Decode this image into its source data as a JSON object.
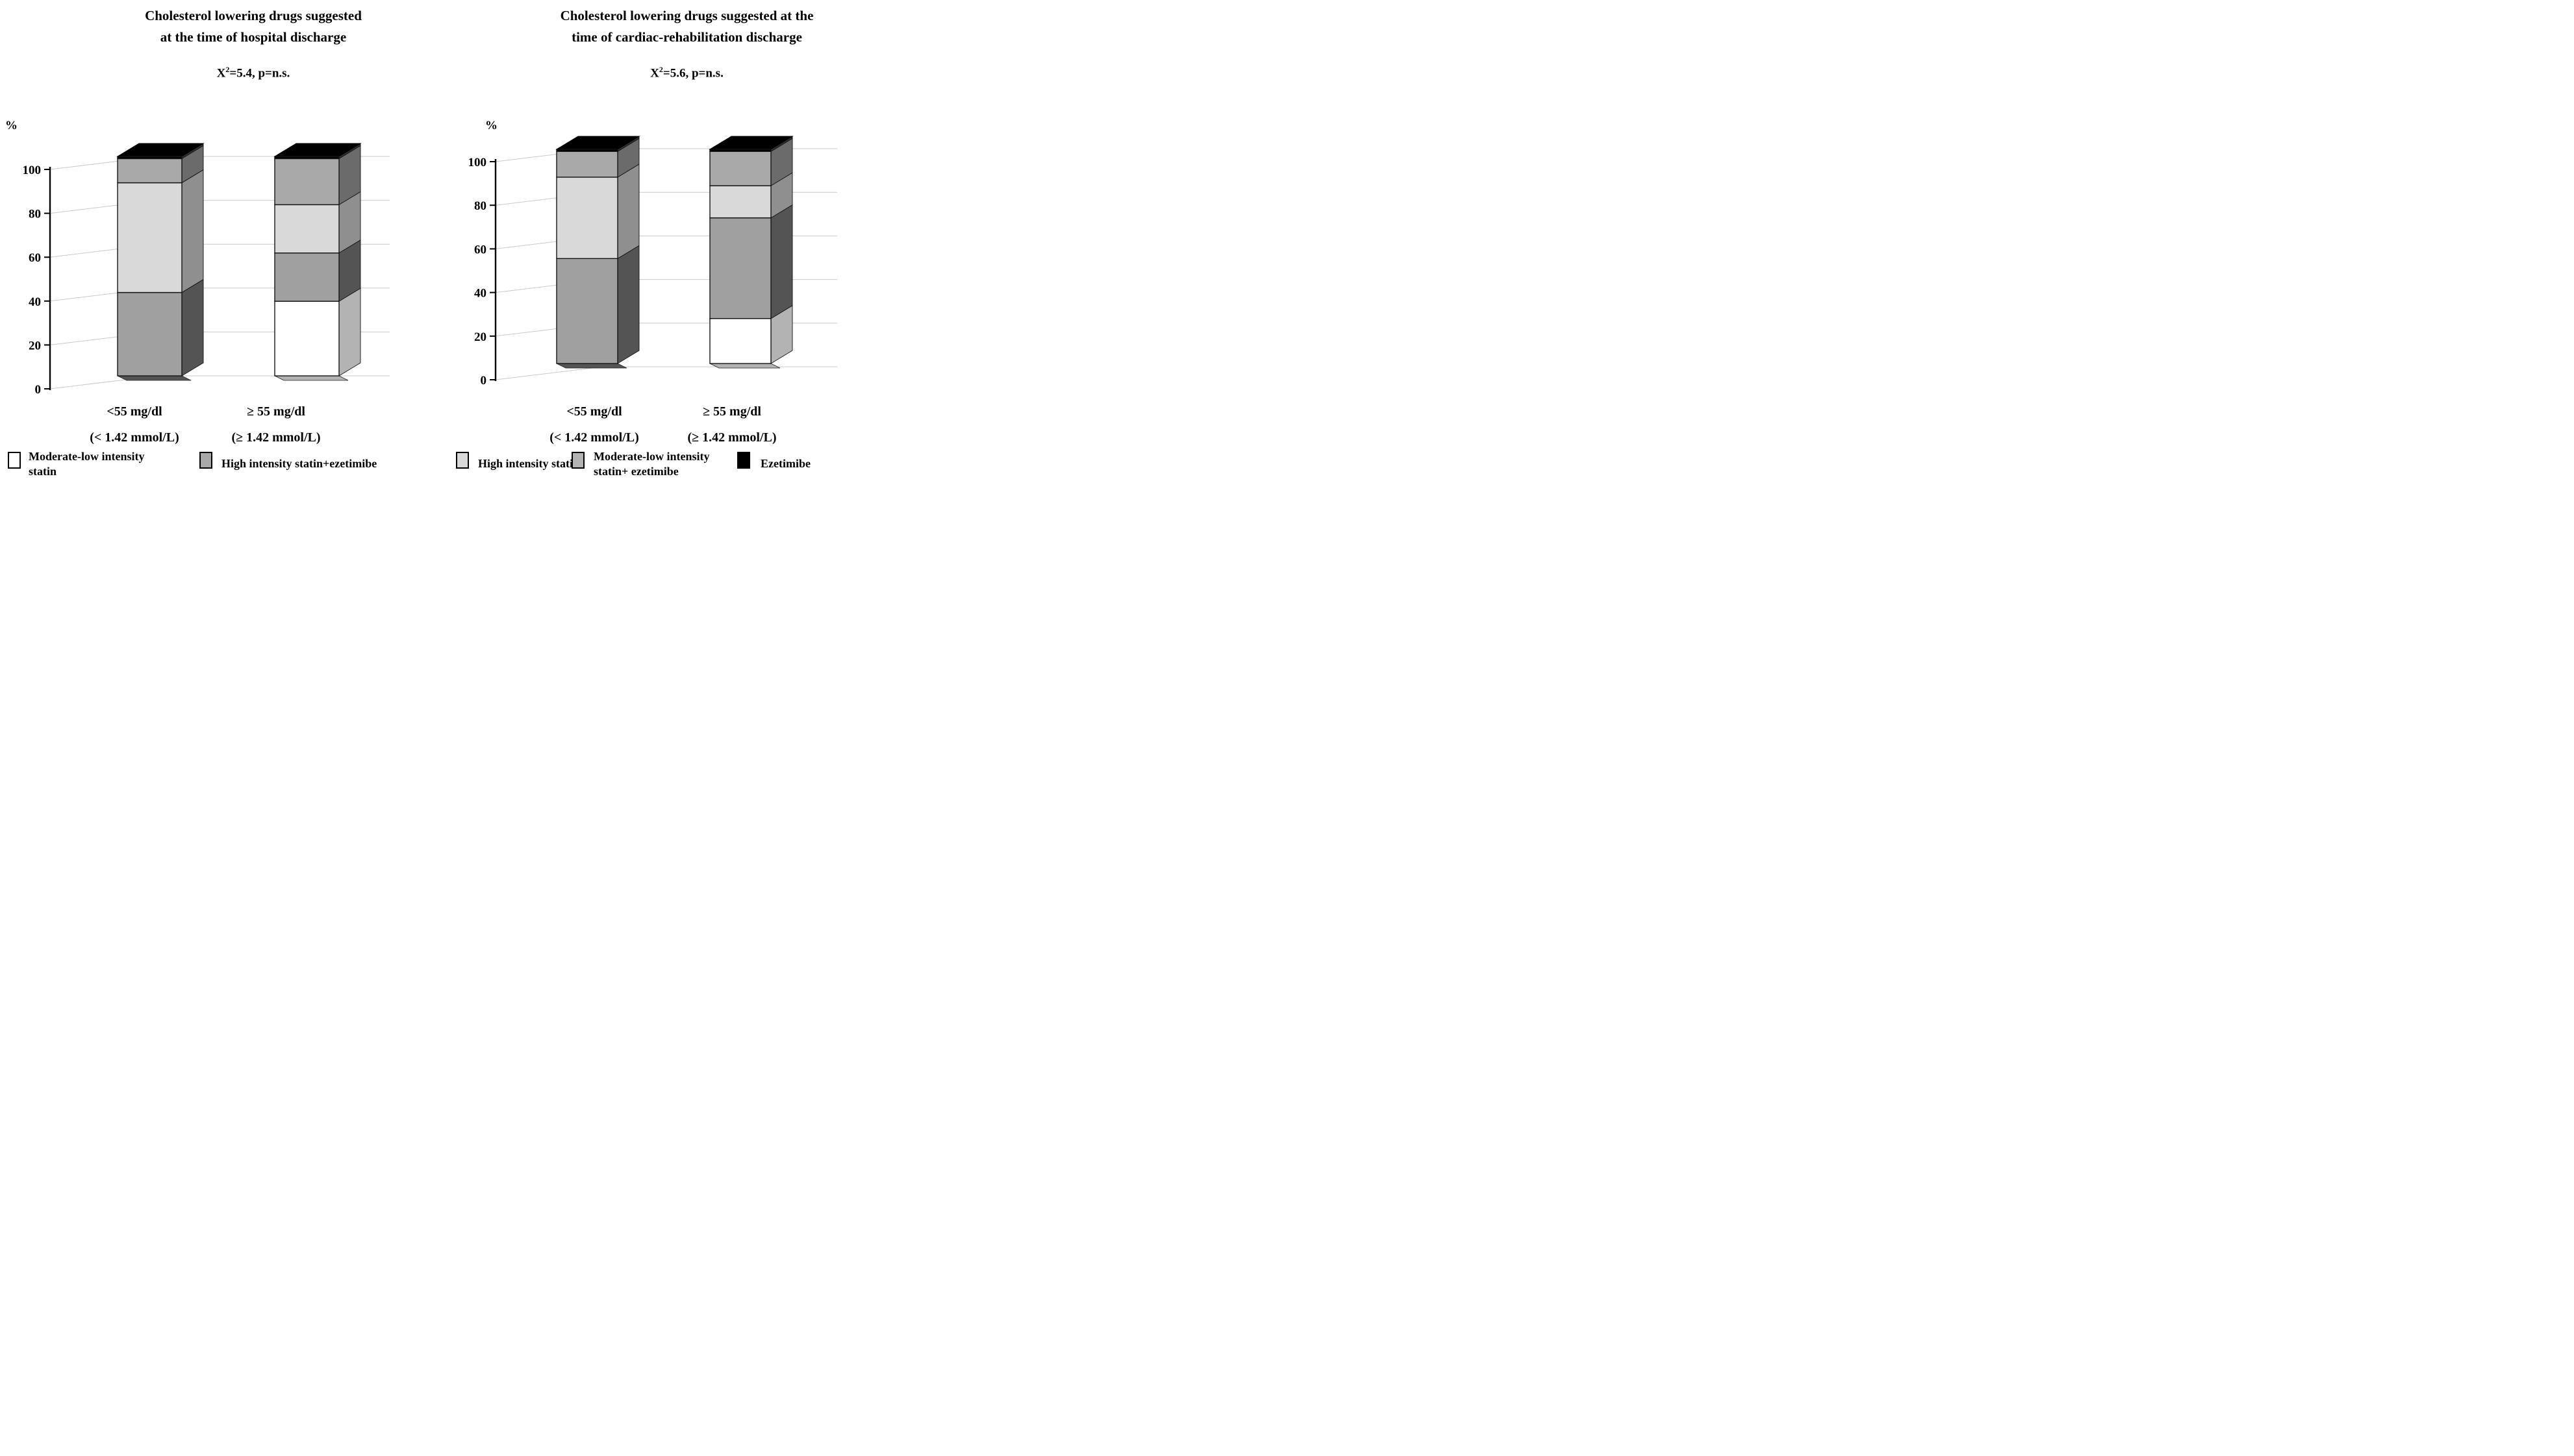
{
  "page": {
    "background": "#ffffff",
    "grid_color": "#c9c9c9",
    "axis_color": "#000000",
    "text_color": "#000000"
  },
  "chart_data": [
    {
      "type": "stacked-bar-3d",
      "title_lines": [
        "Cholesterol lowering drugs suggested",
        "at the time of hospital discharge"
      ],
      "title": "Cholesterol lowering drugs suggested at the time of hospital discharge",
      "subtitle": {
        "base": "X",
        "sup": "2",
        "rest": "=5.4, p=n.s."
      },
      "axis": {
        "unit_label": "%",
        "ticks": [
          0,
          20,
          40,
          60,
          80,
          100
        ],
        "ylim": [
          0,
          100
        ],
        "grid": true
      },
      "categories": [
        {
          "label_lines": [
            "<55 mg/dl",
            "(< 1.42 mmol/L)"
          ],
          "label": "<55 mg/dl (< 1.42 mmol/L)"
        },
        {
          "label_lines": [
            "≥ 55 mg/dl",
            "(≥ 1.42 mmol/L)"
          ],
          "label": "≥ 55 mg/dl (≥ 1.42 mmol/L)"
        }
      ],
      "series": [
        {
          "key": "moderate_low_statin",
          "name": "Moderate-low intensity statin",
          "values": [
            0,
            34
          ]
        },
        {
          "key": "high_statin_ezetimibe",
          "name": "High intensity statin+ezetimibe",
          "values": [
            38,
            22
          ]
        },
        {
          "key": "high_statin",
          "name": "High intensity statin",
          "values": [
            50,
            22
          ]
        },
        {
          "key": "moderate_low_statin_ezetimibe",
          "name": "Moderate-low intensity statin+ ezetimibe",
          "values": [
            11,
            21
          ]
        },
        {
          "key": "ezetimibe",
          "name": "Ezetimibe",
          "values": [
            1,
            1
          ]
        }
      ],
      "legend_position": "bottom"
    },
    {
      "type": "stacked-bar-3d",
      "title_lines": [
        "Cholesterol lowering drugs suggested at the",
        "time of cardiac-rehabilitation discharge"
      ],
      "title": "Cholesterol lowering drugs suggested at the time of cardiac-rehabilitation discharge",
      "subtitle": {
        "base": "X",
        "sup": "2",
        "rest": "=5.6, p=n.s."
      },
      "axis": {
        "unit_label": "%",
        "ticks": [
          0,
          20,
          40,
          60,
          80,
          100
        ],
        "ylim": [
          0,
          100
        ],
        "grid": true
      },
      "categories": [
        {
          "label_lines": [
            "<55 mg/dl",
            "(< 1.42 mmol/L)"
          ],
          "label": "<55 mg/dl (< 1.42 mmol/L)"
        },
        {
          "label_lines": [
            "≥ 55 mg/dl",
            "(≥ 1.42 mmol/L)"
          ],
          "label": "≥ 55 mg/dl (≥ 1.42 mmol/L)"
        }
      ],
      "series": [
        {
          "key": "moderate_low_statin",
          "name": "Moderate-low intensity statin",
          "values": [
            0,
            21
          ]
        },
        {
          "key": "high_statin_ezetimibe",
          "name": "High intensity statin+ezetimibe",
          "values": [
            49,
            47
          ]
        },
        {
          "key": "high_statin",
          "name": "High intensity statin",
          "values": [
            38,
            15
          ]
        },
        {
          "key": "moderate_low_statin_ezetimibe",
          "name": "Moderate-low intensity statin+ ezetimibe",
          "values": [
            12,
            16
          ]
        },
        {
          "key": "ezetimibe",
          "name": "Ezetimibe",
          "values": [
            1,
            1
          ]
        }
      ],
      "legend_position": "bottom"
    }
  ],
  "palette": {
    "moderate_low_statin": {
      "front": "#ffffff",
      "side": "#b3b3b3",
      "swatch": "#ffffff"
    },
    "high_statin_ezetimibe": {
      "front": "#a0a0a0",
      "side": "#545454",
      "swatch": "#a8a8a8"
    },
    "high_statin": {
      "front": "#d9d9d9",
      "side": "#8f8f8f",
      "swatch": "#d9d9d9"
    },
    "moderate_low_statin_ezetimibe": {
      "front": "#a9a9a9",
      "side": "#6b6b6b",
      "swatch": "#b3b3b3"
    },
    "ezetimibe": {
      "front": "#000000",
      "side": "#303030",
      "swatch": "#000000"
    }
  },
  "legend": {
    "items": [
      {
        "key": "moderate_low_statin",
        "label_lines": [
          "Moderate-low intensity",
          "statin"
        ]
      },
      {
        "key": "high_statin_ezetimibe",
        "label_lines": [
          "High intensity statin+ezetimibe"
        ]
      },
      {
        "key": "high_statin",
        "label_lines": [
          "High intensity statin"
        ]
      },
      {
        "key": "moderate_low_statin_ezetimibe",
        "label_lines": [
          "Moderate-low intensity",
          "statin+ ezetimibe"
        ]
      },
      {
        "key": "ezetimibe",
        "label_lines": [
          "Ezetimibe"
        ]
      }
    ]
  }
}
